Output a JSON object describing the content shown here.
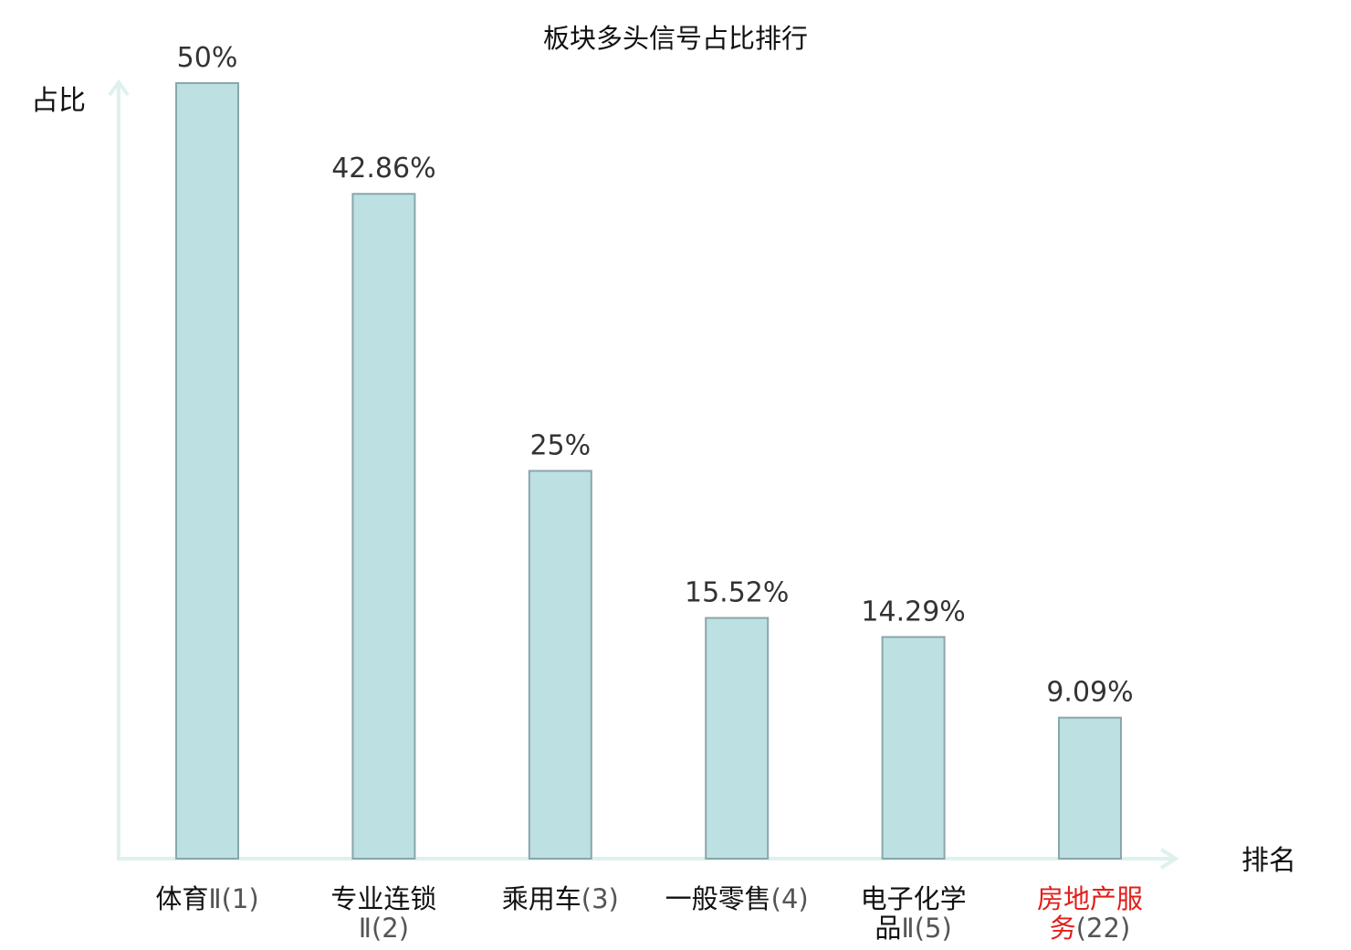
{
  "chart_data": {
    "type": "bar",
    "title": "板块多头信号占比排行",
    "ylabel": "占比",
    "xlabel": "排名",
    "ylim": [
      0,
      50
    ],
    "grid": false,
    "categories": [
      {
        "lines": [
          {
            "text": "体育",
            "num": "Ⅱ(1)"
          }
        ],
        "highlight": false
      },
      {
        "lines": [
          {
            "text": "专业连锁",
            "num": ""
          },
          {
            "text": "",
            "num": "Ⅱ(2)"
          }
        ],
        "highlight": false
      },
      {
        "lines": [
          {
            "text": "乘用车",
            "num": "(3)"
          }
        ],
        "highlight": false
      },
      {
        "lines": [
          {
            "text": "一般零售",
            "num": "(4)"
          }
        ],
        "highlight": false
      },
      {
        "lines": [
          {
            "text": "电子化学",
            "num": ""
          },
          {
            "text": "品",
            "num": "Ⅱ(5)"
          }
        ],
        "highlight": false
      },
      {
        "lines": [
          {
            "text": "房地产服",
            "num": ""
          },
          {
            "text": "务",
            "num": "(22)"
          }
        ],
        "highlight": true
      }
    ],
    "values": [
      50,
      42.86,
      25,
      15.52,
      14.29,
      9.09
    ],
    "value_labels": [
      "50%",
      "42.86%",
      "25%",
      "15.52%",
      "14.29%",
      "9.09%"
    ]
  },
  "colors": {
    "bar_fill": "#bde0e3",
    "bar_stroke": "#8aa6aa",
    "axis": "#dff1ee",
    "highlight": "#e0201c",
    "text": "#111111"
  }
}
